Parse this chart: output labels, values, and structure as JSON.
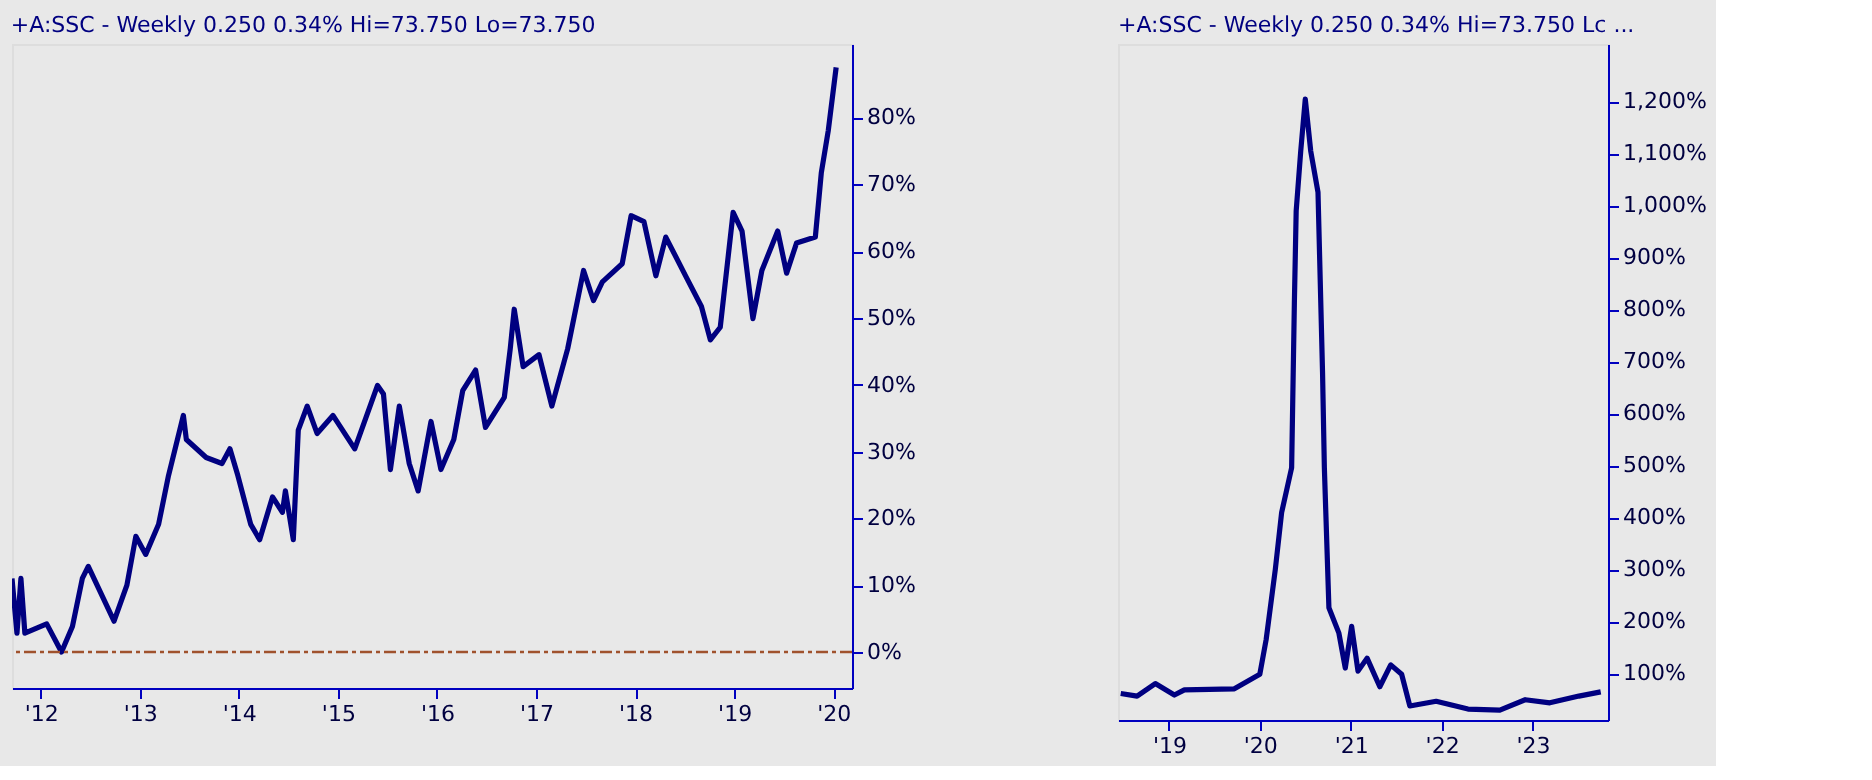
{
  "chart_data": [
    {
      "type": "line",
      "title": "+A:SSC - Weekly 0.250 0.34% Hi=73.750 Lo=73.750",
      "x": [
        2011.71,
        2011.76,
        2011.8,
        2011.84,
        2012.06,
        2012.21,
        2012.32,
        2012.42,
        2012.48,
        2012.74,
        2012.87,
        2012.96,
        2013.06,
        2013.19,
        2013.29,
        2013.44,
        2013.47,
        2013.67,
        2013.83,
        2013.91,
        2013.99,
        2014.12,
        2014.21,
        2014.34,
        2014.44,
        2014.47,
        2014.55,
        2014.6,
        2014.69,
        2014.79,
        2014.95,
        2015.17,
        2015.4,
        2015.46,
        2015.53,
        2015.62,
        2015.72,
        2015.81,
        2015.94,
        2016.04,
        2016.17,
        2016.26,
        2016.39,
        2016.49,
        2016.68,
        2016.74,
        2016.78,
        2016.87,
        2017.03,
        2017.16,
        2017.32,
        2017.48,
        2017.58,
        2017.67,
        2017.87,
        2017.96,
        2018.09,
        2018.21,
        2018.31,
        2018.51,
        2018.67,
        2018.76,
        2018.86,
        2018.99,
        2019.08,
        2019.19,
        2019.28,
        2019.44,
        2019.53,
        2019.63,
        2019.82,
        2019.88,
        2019.95,
        2020.03
      ],
      "series": [
        {
          "color": "#000080",
          "values": [
            11,
            2.8,
            11,
            2.8,
            4.2,
            0,
            3.8,
            11,
            12.8,
            4.6,
            10,
            17.3,
            14.6,
            19.1,
            26.4,
            35.4,
            31.8,
            29.1,
            28.2,
            30.4,
            26.4,
            19.1,
            16.8,
            23.2,
            20.9,
            24.1,
            16.8,
            33.2,
            36.8,
            32.7,
            35.4,
            30.4,
            39.9,
            38.6,
            27.3,
            36.8,
            28.2,
            24.1,
            34.5,
            27.3,
            31.8,
            39.1,
            42.2,
            33.6,
            38.1,
            45.4,
            51.3,
            42.7,
            44.5,
            36.8,
            45.4,
            57.1,
            52.6,
            55.4,
            58.1,
            65.3,
            64.4,
            56.3,
            62.1,
            56.3,
            51.7,
            46.7,
            48.6,
            65.8,
            63,
            49.9,
            57.1,
            63,
            56.7,
            61.2,
            62.1,
            71.7,
            78,
            87.5
          ]
        }
      ],
      "xlim": [
        2011.71,
        2020.19
      ],
      "xticks": [
        {
          "value": 2012,
          "label": "'12"
        },
        {
          "value": 2013,
          "label": "'13"
        },
        {
          "value": 2014,
          "label": "'14"
        },
        {
          "value": 2015,
          "label": "'15"
        },
        {
          "value": 2016,
          "label": "'16"
        },
        {
          "value": 2017,
          "label": "'17"
        },
        {
          "value": 2018,
          "label": "'18"
        },
        {
          "value": 2019,
          "label": "'19"
        },
        {
          "value": 2020,
          "label": "'20"
        }
      ],
      "ylim": [
        -5.4,
        91
      ],
      "yticks": [
        {
          "value": 0,
          "label": "0%"
        },
        {
          "value": 10,
          "label": "10%"
        },
        {
          "value": 20,
          "label": "20%"
        },
        {
          "value": 30,
          "label": "30%"
        },
        {
          "value": 40,
          "label": "40%"
        },
        {
          "value": 50,
          "label": "50%"
        },
        {
          "value": 60,
          "label": "60%"
        },
        {
          "value": 70,
          "label": "70%"
        },
        {
          "value": 80,
          "label": "80%"
        }
      ],
      "ref_lines": [
        {
          "axis": "y",
          "value": 0,
          "color": "#a0522d",
          "line_style": "dashdot"
        }
      ],
      "grid": false
    },
    {
      "type": "line",
      "title": "+A:SSC - Weekly 0.250 0.34% Hi=73.750 Lc ...",
      "x": [
        2018.47,
        2018.65,
        2018.85,
        2019.06,
        2019.17,
        2019.72,
        2020.0,
        2020.07,
        2020.17,
        2020.24,
        2020.35,
        2020.38,
        2020.4,
        2020.45,
        2020.5,
        2020.56,
        2020.64,
        2020.69,
        2020.71,
        2020.76,
        2020.87,
        2020.94,
        2021.01,
        2021.08,
        2021.18,
        2021.32,
        2021.44,
        2021.56,
        2021.65,
        2021.94,
        2022.29,
        2022.64,
        2022.92,
        2023.19,
        2023.51,
        2023.75
      ],
      "series": [
        {
          "color": "#000080",
          "values": [
            61,
            56,
            80,
            58,
            68,
            70,
            98,
            165,
            299,
            409,
            495,
            811,
            989,
            1104,
            1204,
            1104,
            1025,
            678,
            495,
            226,
            177,
            110,
            190,
            104,
            129,
            74,
            116,
            98,
            37,
            46,
            31,
            29,
            49,
            43,
            56,
            64
          ]
        }
      ],
      "xlim": [
        2018.44,
        2023.83
      ],
      "xticks": [
        {
          "value": 2019,
          "label": "'19"
        },
        {
          "value": 2020,
          "label": "'20"
        },
        {
          "value": 2021,
          "label": "'21"
        },
        {
          "value": 2022,
          "label": "'22"
        },
        {
          "value": 2023,
          "label": "'23"
        }
      ],
      "ylim": [
        10,
        1310
      ],
      "yticks": [
        {
          "value": 100,
          "label": "100%"
        },
        {
          "value": 200,
          "label": "200%"
        },
        {
          "value": 300,
          "label": "300%"
        },
        {
          "value": 400,
          "label": "400%"
        },
        {
          "value": 500,
          "label": "500%"
        },
        {
          "value": 600,
          "label": "600%"
        },
        {
          "value": 700,
          "label": "700%"
        },
        {
          "value": 800,
          "label": "800%"
        },
        {
          "value": 900,
          "label": "900%"
        },
        {
          "value": 1000,
          "label": "1,000%"
        },
        {
          "value": 1100,
          "label": "1,100%"
        },
        {
          "value": 1200,
          "label": "1,200%"
        }
      ],
      "grid": false
    }
  ]
}
